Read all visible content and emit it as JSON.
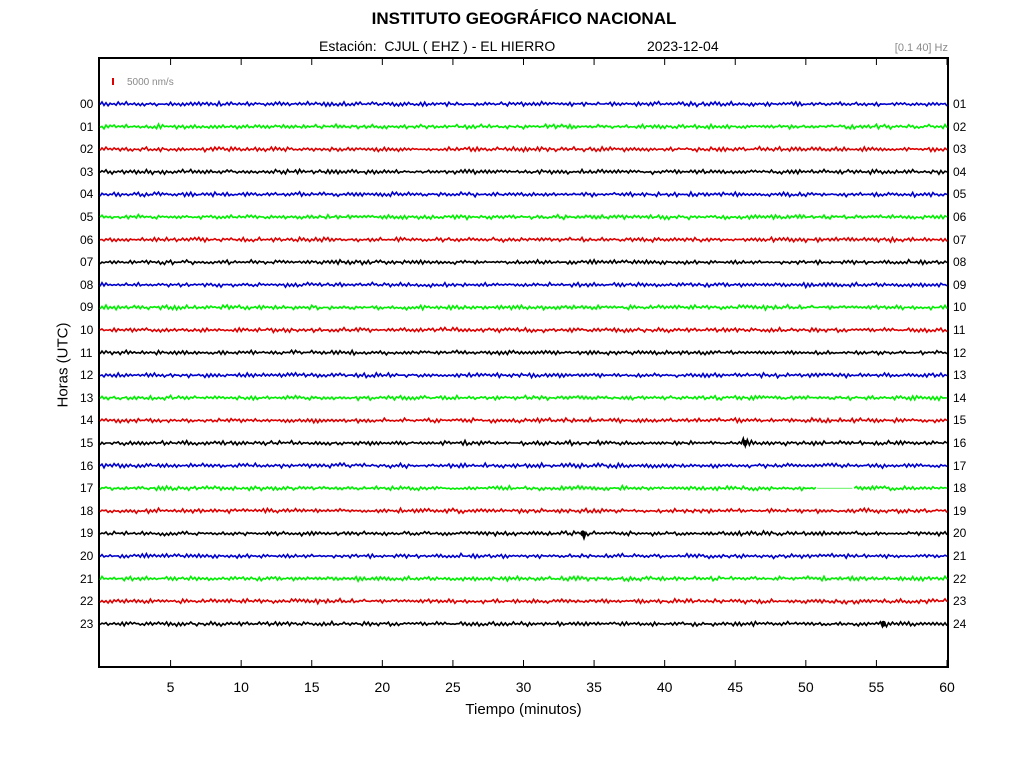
{
  "header": {
    "title": "INSTITUTO GEOGRÁFICO NACIONAL",
    "station": "Estación:  CJUL ( EHZ ) - EL HIERRO",
    "date": "2023-12-04",
    "filter": "[0.1 40] Hz"
  },
  "chart_data": {
    "type": "line",
    "title": "INSTITUTO GEOGRÁFICO NACIONAL",
    "xlabel": "Tiempo (minutos)",
    "ylabel": "Horas (UTC)",
    "xlim": [
      0,
      60
    ],
    "x_ticks": [
      "5",
      "10",
      "15",
      "20",
      "25",
      "30",
      "35",
      "40",
      "45",
      "50",
      "55",
      "60"
    ],
    "y_ticks_left": [
      "00",
      "01",
      "02",
      "03",
      "04",
      "05",
      "06",
      "07",
      "08",
      "09",
      "10",
      "11",
      "12",
      "13",
      "14",
      "15",
      "16",
      "17",
      "18",
      "19",
      "20",
      "21",
      "22",
      "23"
    ],
    "y_ticks_right": [
      "01",
      "02",
      "03",
      "04",
      "05",
      "06",
      "07",
      "08",
      "09",
      "10",
      "11",
      "12",
      "13",
      "14",
      "15",
      "16",
      "17",
      "18",
      "19",
      "20",
      "21",
      "22",
      "23",
      "24"
    ],
    "scale_bar": "5000 nm/s",
    "trace_colors": [
      "#0000cc",
      "#00ee00",
      "#dd0000",
      "#000000"
    ],
    "grid": false,
    "events": [
      {
        "hour": "15",
        "minute": 45.7
      },
      {
        "hour": "19",
        "minute": 34.2
      },
      {
        "hour": "23",
        "minute": 55.5
      }
    ],
    "gaps": [
      {
        "hour": "17",
        "from_minute": 50.8,
        "to_minute": 53.3
      }
    ]
  }
}
